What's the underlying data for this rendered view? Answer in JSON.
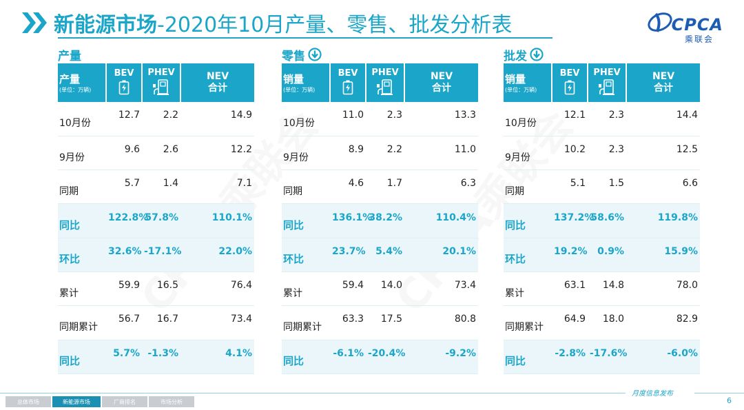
{
  "header": {
    "title_bold": "新能源市场",
    "title_rest": "-2020年10月产量、零售、批发分析表",
    "logo_text": "CPCA",
    "logo_sub": "乘联会"
  },
  "colors": {
    "accent": "#1ba6c9",
    "logo": "#1e5bb3",
    "highlight_row": "#eaf6fa"
  },
  "sections": [
    {
      "title": "产量",
      "has_arrow": false,
      "head": {
        "main": "产量",
        "unit": "(单位：万辆)",
        "bev": "BEV",
        "phev": "PHEV",
        "nev1": "NEV",
        "nev2": "合计"
      },
      "rows": [
        {
          "label": "10月份",
          "bev": "12.7",
          "phev": "2.2",
          "nev": "14.9"
        },
        {
          "label": "9月份",
          "bev": "9.6",
          "phev": "2.6",
          "nev": "12.2"
        },
        {
          "label": "同期",
          "bev": "5.7",
          "phev": "1.4",
          "nev": "7.1"
        },
        {
          "label": "同比",
          "bev": "122.8%",
          "phev": "57.8%",
          "nev": "110.1%"
        },
        {
          "label": "环比",
          "bev": "32.6%",
          "phev": "-17.1%",
          "nev": "22.0%"
        },
        {
          "label": "累计",
          "bev": "59.9",
          "phev": "16.5",
          "nev": "76.4"
        },
        {
          "label": "同期累计",
          "bev": "56.7",
          "phev": "16.7",
          "nev": "73.4"
        },
        {
          "label": "同比",
          "bev": "5.7%",
          "phev": "-1.3%",
          "nev": "4.1%"
        }
      ]
    },
    {
      "title": "零售",
      "has_arrow": true,
      "head": {
        "main": "销量",
        "unit": "(单位：万辆)",
        "bev": "BEV",
        "phev": "PHEV",
        "nev1": "NEV",
        "nev2": "合计"
      },
      "rows": [
        {
          "label": "10月份",
          "bev": "11.0",
          "phev": "2.3",
          "nev": "13.3"
        },
        {
          "label": "9月份",
          "bev": "8.9",
          "phev": "2.2",
          "nev": "11.0"
        },
        {
          "label": "同期",
          "bev": "4.6",
          "phev": "1.7",
          "nev": "6.3"
        },
        {
          "label": "同比",
          "bev": "136.1%",
          "phev": "38.2%",
          "nev": "110.4%"
        },
        {
          "label": "环比",
          "bev": "23.7%",
          "phev": "5.4%",
          "nev": "20.1%"
        },
        {
          "label": "累计",
          "bev": "59.4",
          "phev": "14.0",
          "nev": "73.4"
        },
        {
          "label": "同期累计",
          "bev": "63.3",
          "phev": "17.5",
          "nev": "80.8"
        },
        {
          "label": "同比",
          "bev": "-6.1%",
          "phev": "-20.4%",
          "nev": "-9.2%"
        }
      ]
    },
    {
      "title": "批发",
      "has_arrow": true,
      "head": {
        "main": "销量",
        "unit": "(单位：万辆)",
        "bev": "BEV",
        "phev": "PHEV",
        "nev1": "NEV",
        "nev2": "合计"
      },
      "rows": [
        {
          "label": "10月份",
          "bev": "12.1",
          "phev": "2.3",
          "nev": "14.4"
        },
        {
          "label": "9月份",
          "bev": "10.2",
          "phev": "2.3",
          "nev": "12.5"
        },
        {
          "label": "同期",
          "bev": "5.1",
          "phev": "1.5",
          "nev": "6.6"
        },
        {
          "label": "同比",
          "bev": "137.2%",
          "phev": "58.6%",
          "nev": "119.8%"
        },
        {
          "label": "环比",
          "bev": "19.2%",
          "phev": "0.9%",
          "nev": "15.9%"
        },
        {
          "label": "累计",
          "bev": "63.1",
          "phev": "14.8",
          "nev": "78.0"
        },
        {
          "label": "同期累计",
          "bev": "64.9",
          "phev": "18.0",
          "nev": "82.9"
        },
        {
          "label": "同比",
          "bev": "-2.8%",
          "phev": "-17.6%",
          "nev": "-6.0%"
        }
      ]
    }
  ],
  "footer": {
    "tabs": [
      "总体市场",
      "新能源市场",
      "厂商排名",
      "市场分析"
    ],
    "active_tab": 1,
    "caption": "月度信息发布",
    "page": "6"
  }
}
